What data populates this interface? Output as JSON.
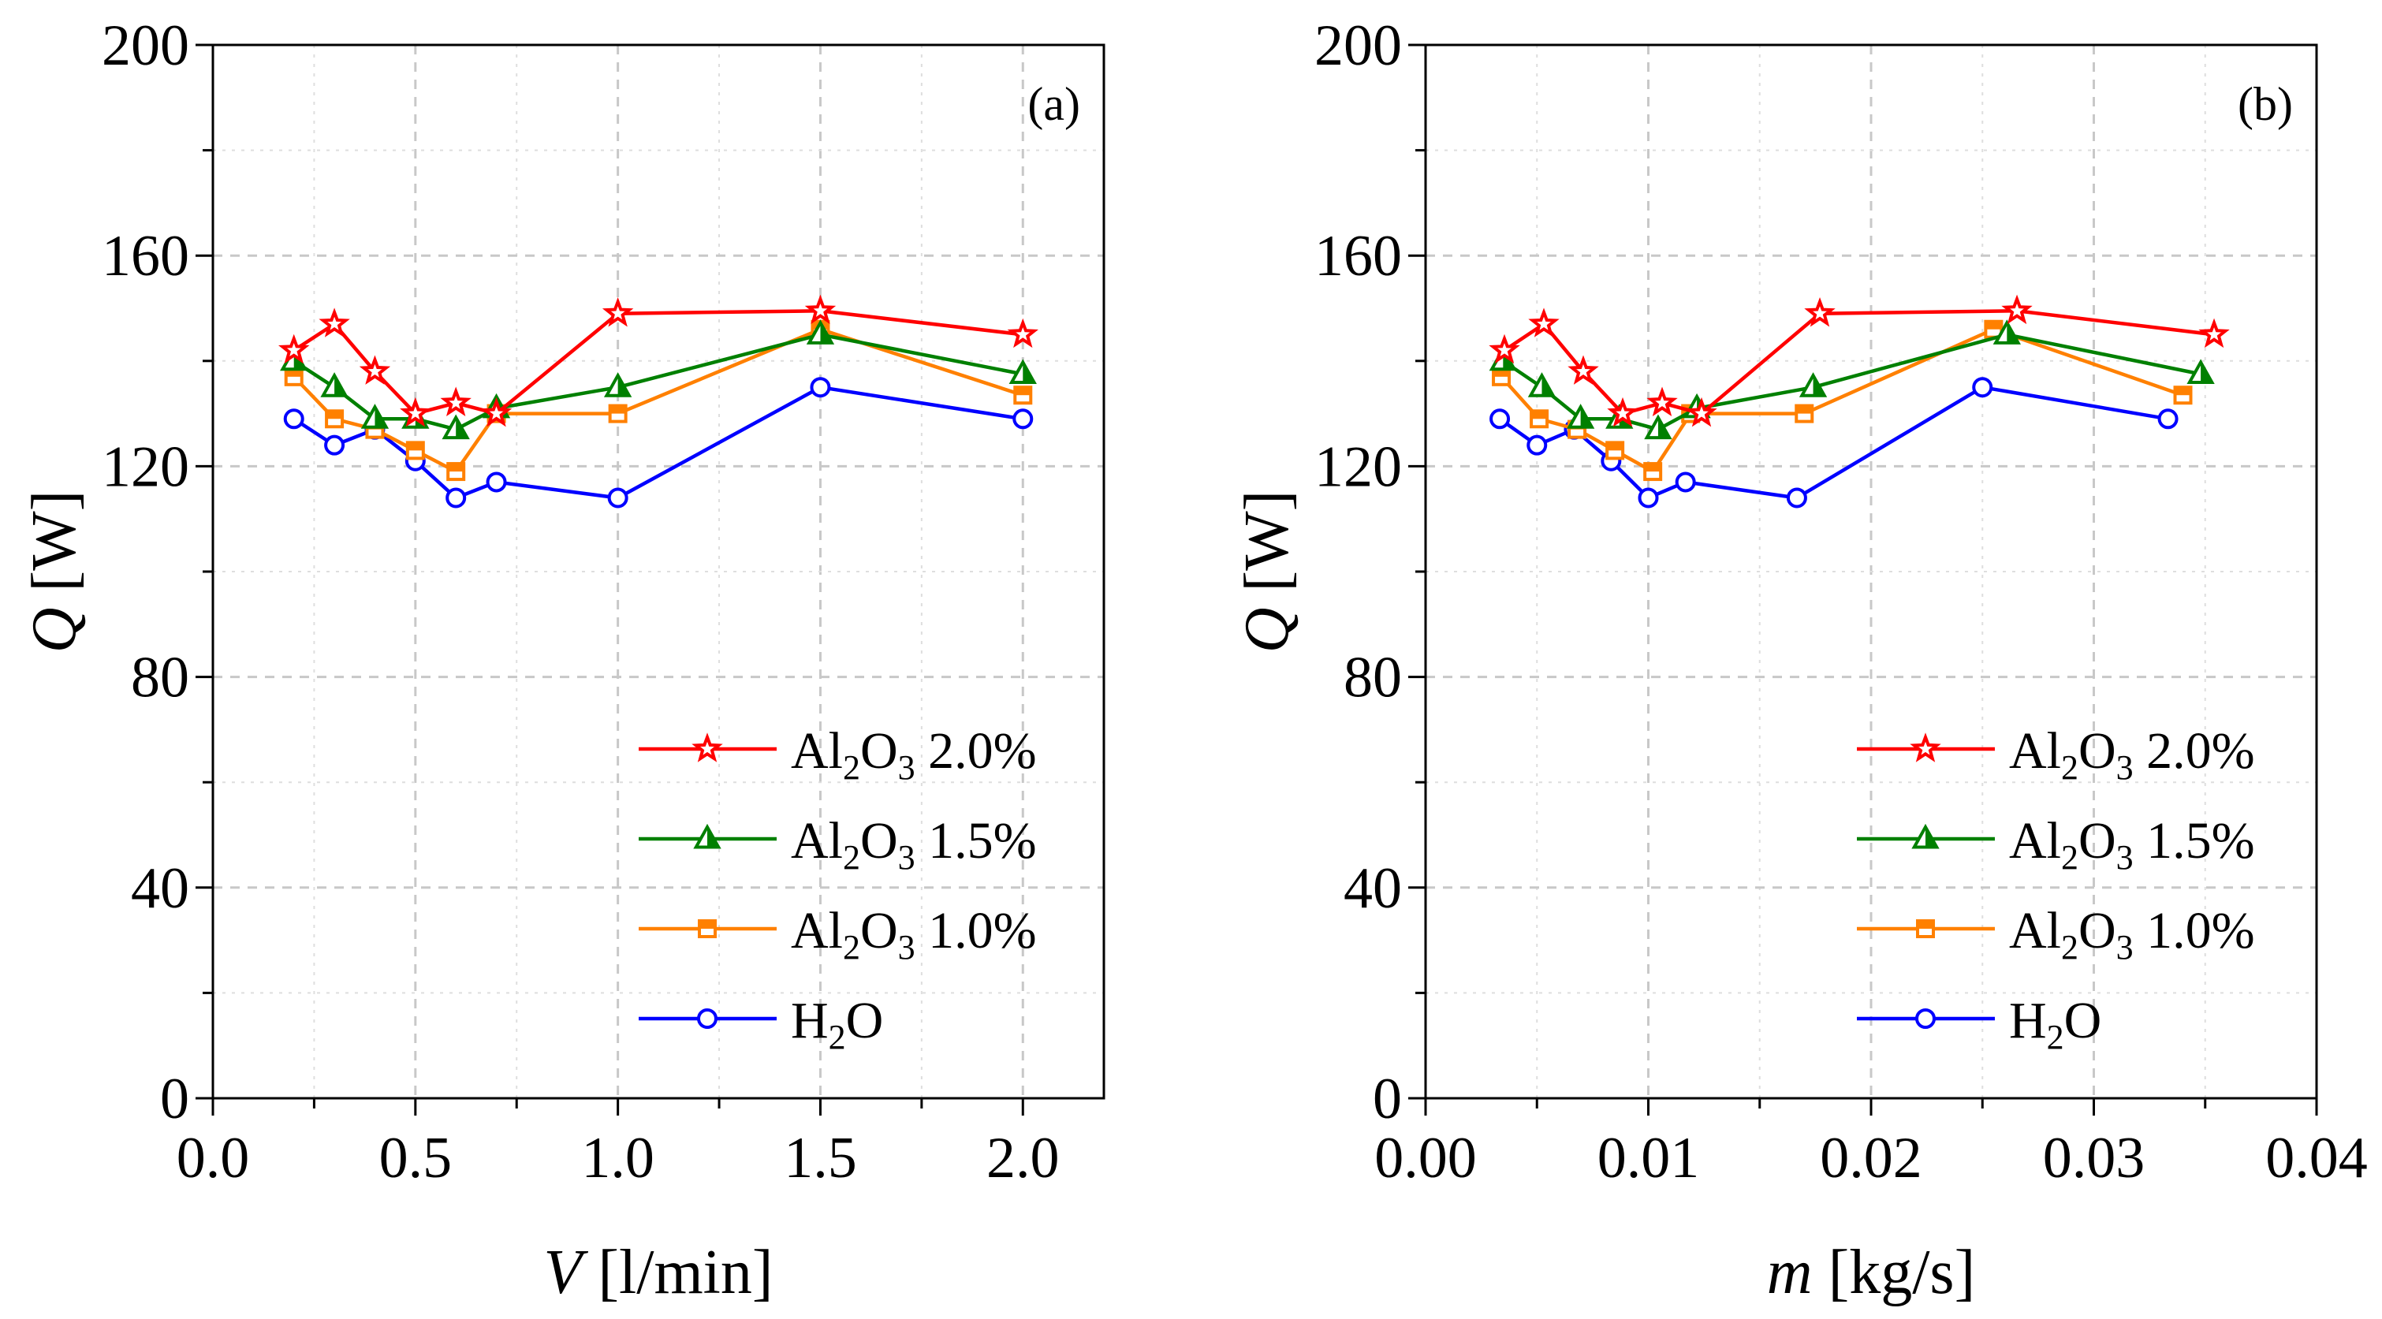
{
  "chart_data": [
    {
      "type": "line",
      "panel_label": "(a)",
      "xlabel": {
        "symbol": "V",
        "unit": " [l/min]"
      },
      "ylabel": {
        "symbol": "Q",
        "unit": " [W]"
      },
      "xlim": [
        0.0,
        2.2
      ],
      "ylim": [
        0,
        200
      ],
      "xticks": [
        0.0,
        0.5,
        1.0,
        1.5,
        2.0
      ],
      "xtick_labels": [
        "0.0",
        "0.5",
        "1.0",
        "1.5",
        "2.0"
      ],
      "yticks": [
        0,
        40,
        80,
        120,
        160,
        200
      ],
      "ytick_labels": [
        "0",
        "40",
        "80",
        "120",
        "160",
        "200"
      ],
      "grid": true,
      "legend_position": "bottom-right",
      "series": [
        {
          "name": "Al2O3 2.0%",
          "label_parts": [
            "Al",
            "2",
            "O",
            "3",
            " 2.0%"
          ],
          "color": "#ff0000",
          "marker": "star",
          "x": [
            0.2,
            0.3,
            0.4,
            0.5,
            0.6,
            0.7,
            1.0,
            1.5,
            2.0
          ],
          "y": [
            142,
            147,
            138,
            130,
            132,
            130,
            149,
            149.5,
            145
          ]
        },
        {
          "name": "Al2O3 1.5%",
          "label_parts": [
            "Al",
            "2",
            "O",
            "3",
            " 1.5%"
          ],
          "color": "#008000",
          "marker": "triangle",
          "x": [
            0.2,
            0.3,
            0.4,
            0.5,
            0.6,
            0.7,
            1.0,
            1.5,
            2.0
          ],
          "y": [
            140,
            135,
            129,
            129,
            127,
            131,
            135,
            145,
            137.5
          ]
        },
        {
          "name": "Al2O3 1.0%",
          "label_parts": [
            "Al",
            "2",
            "O",
            "3",
            " 1.0%"
          ],
          "color": "#ff8000",
          "marker": "square",
          "x": [
            0.2,
            0.3,
            0.4,
            0.5,
            0.6,
            0.7,
            1.0,
            1.5,
            2.0
          ],
          "y": [
            137,
            129,
            127,
            123,
            119,
            130,
            130,
            146,
            133.5
          ]
        },
        {
          "name": "H2O",
          "label_parts": [
            "H",
            "2",
            "O",
            "",
            ""
          ],
          "color": "#0000ff",
          "marker": "circle",
          "x": [
            0.2,
            0.3,
            0.4,
            0.5,
            0.6,
            0.7,
            1.0,
            1.5,
            2.0
          ],
          "y": [
            129,
            124,
            127,
            121,
            114,
            117,
            114,
            135,
            129
          ]
        }
      ]
    },
    {
      "type": "line",
      "panel_label": "(b)",
      "xlabel": {
        "symbol": "m",
        "unit": " [kg/s]"
      },
      "ylabel": {
        "symbol": "Q",
        "unit": " [W]"
      },
      "xlim": [
        0.0,
        0.04
      ],
      "ylim": [
        0,
        200
      ],
      "xticks": [
        0.0,
        0.01,
        0.02,
        0.03,
        0.04
      ],
      "xtick_labels": [
        "0.00",
        "0.01",
        "0.02",
        "0.03",
        "0.04"
      ],
      "yticks": [
        0,
        40,
        80,
        120,
        160,
        200
      ],
      "ytick_labels": [
        "0",
        "40",
        "80",
        "120",
        "160",
        "200"
      ],
      "grid": true,
      "legend_position": "bottom-right",
      "series": [
        {
          "name": "Al2O3 2.0%",
          "label_parts": [
            "Al",
            "2",
            "O",
            "3",
            " 2.0%"
          ],
          "color": "#ff0000",
          "marker": "star",
          "x": [
            0.00354,
            0.00531,
            0.00708,
            0.00885,
            0.01062,
            0.01239,
            0.0177,
            0.02655,
            0.0354
          ],
          "y": [
            142,
            147,
            138,
            130,
            132,
            130,
            149,
            149.5,
            145
          ]
        },
        {
          "name": "Al2O3 1.5%",
          "label_parts": [
            "Al",
            "2",
            "O",
            "3",
            " 1.5%"
          ],
          "color": "#008000",
          "marker": "triangle",
          "x": [
            0.00348,
            0.00522,
            0.00696,
            0.0087,
            0.01044,
            0.01218,
            0.0174,
            0.0261,
            0.0348
          ],
          "y": [
            140,
            135,
            129,
            129,
            127,
            131,
            135,
            145,
            137.5
          ]
        },
        {
          "name": "Al2O3 1.0%",
          "label_parts": [
            "Al",
            "2",
            "O",
            "3",
            " 1.0%"
          ],
          "color": "#ff8000",
          "marker": "square",
          "x": [
            0.0034,
            0.0051,
            0.0068,
            0.0085,
            0.0102,
            0.0119,
            0.017,
            0.0255,
            0.034
          ],
          "y": [
            137,
            129,
            127,
            123,
            119,
            130,
            130,
            146,
            133.5
          ]
        },
        {
          "name": "H2O",
          "label_parts": [
            "H",
            "2",
            "O",
            "",
            ""
          ],
          "color": "#0000ff",
          "marker": "circle",
          "x": [
            0.00333,
            0.005,
            0.00667,
            0.00833,
            0.01,
            0.01167,
            0.01667,
            0.025,
            0.03333
          ],
          "y": [
            129,
            124,
            127,
            121,
            114,
            117,
            114,
            135,
            129
          ]
        }
      ]
    }
  ]
}
